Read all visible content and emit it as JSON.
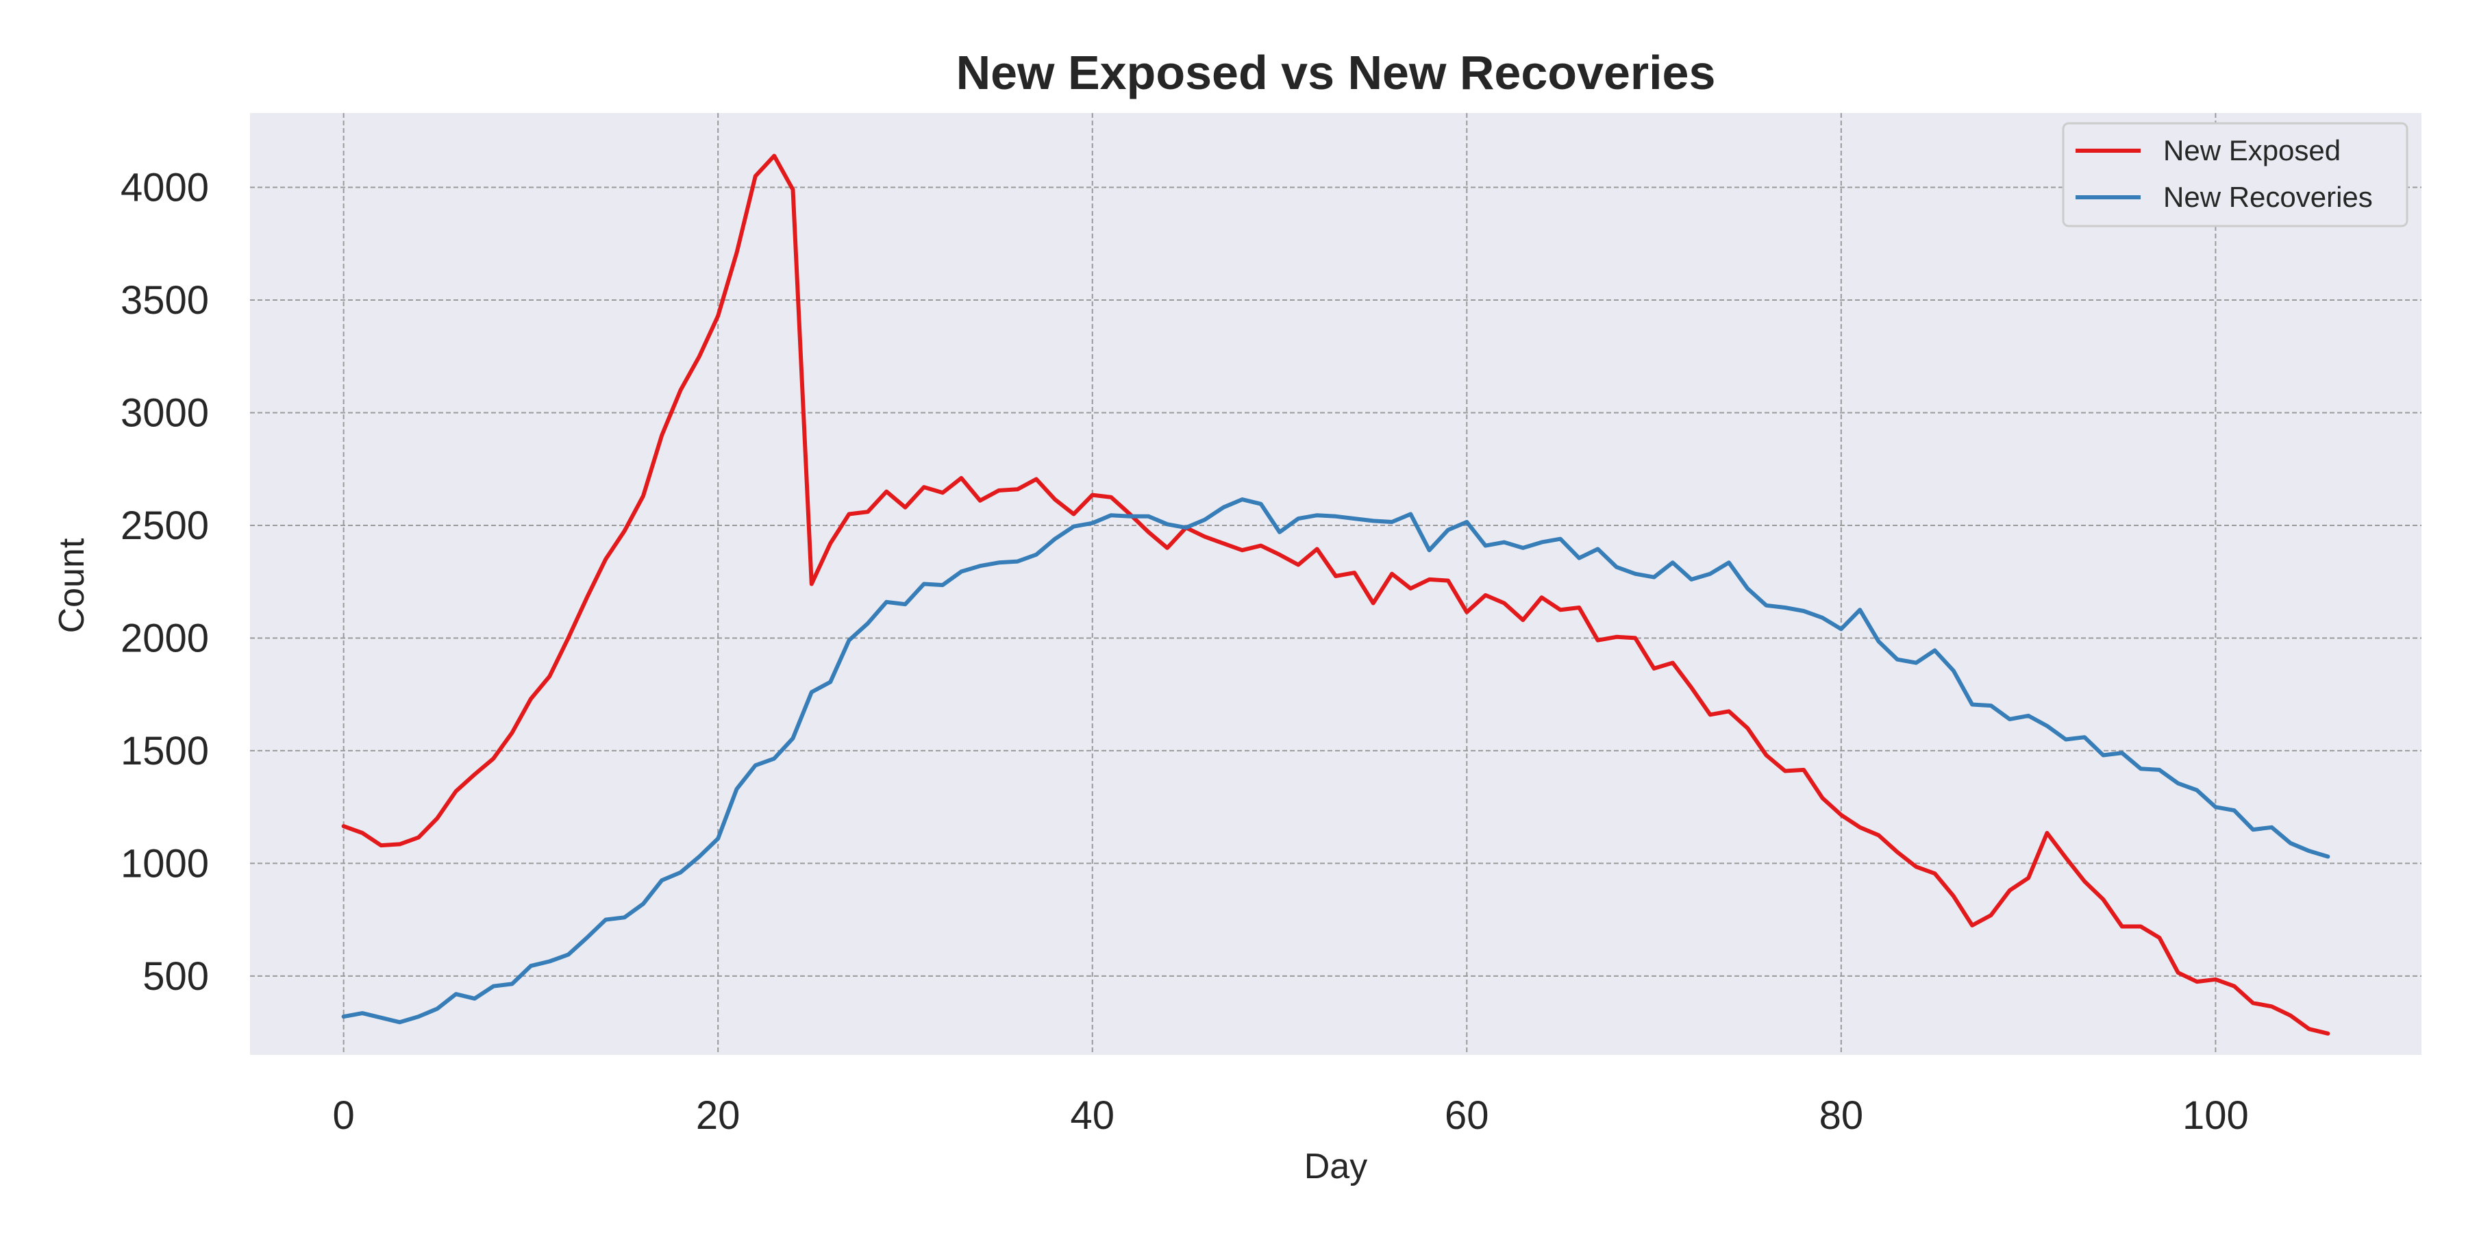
{
  "chart_data": {
    "type": "line",
    "title": "New Exposed vs New Recoveries",
    "xlabel": "Day",
    "ylabel": "Count",
    "xlim": [
      -5,
      111
    ],
    "ylim": [
      150,
      4330
    ],
    "xticks": [
      0,
      20,
      40,
      60,
      80,
      100
    ],
    "yticks": [
      500,
      1000,
      1500,
      2000,
      2500,
      3000,
      3500,
      4000
    ],
    "grid": true,
    "legend_position": "top-right",
    "background_color": "#eaeaf2",
    "grid_color": "#9a9a9a",
    "series": [
      {
        "name": "New Exposed",
        "color": "#e31a1c",
        "x": [
          0,
          1,
          2,
          3,
          4,
          5,
          6,
          7,
          8,
          9,
          10,
          11,
          12,
          13,
          14,
          15,
          16,
          17,
          18,
          19,
          20,
          21,
          22,
          23,
          24,
          25,
          26,
          27,
          28,
          29,
          30,
          31,
          32,
          33,
          34,
          35,
          36,
          37,
          38,
          39,
          40,
          41,
          42,
          43,
          44,
          45,
          46,
          47,
          48,
          49,
          50,
          51,
          52,
          53,
          54,
          55,
          56,
          57,
          58,
          59,
          60,
          61,
          62,
          63,
          64,
          65,
          66,
          67,
          68,
          69,
          70,
          71,
          72,
          73,
          74,
          75,
          76,
          77,
          78,
          79,
          80,
          81,
          82,
          83,
          84,
          85,
          86,
          87,
          88,
          89,
          90,
          91,
          92,
          93,
          94,
          95,
          96,
          97,
          98,
          99,
          100,
          101,
          102,
          103,
          104,
          105,
          106
        ],
        "values": [
          1165,
          1135,
          1080,
          1085,
          1115,
          1200,
          1320,
          1395,
          1465,
          1580,
          1730,
          1830,
          2000,
          2180,
          2350,
          2475,
          2630,
          2900,
          3100,
          3250,
          3430,
          3710,
          4050,
          4140,
          3990,
          2240,
          2420,
          2550,
          2560,
          2650,
          2580,
          2670,
          2645,
          2710,
          2610,
          2655,
          2660,
          2705,
          2615,
          2550,
          2635,
          2625,
          2550,
          2470,
          2400,
          2490,
          2450,
          2420,
          2390,
          2410,
          2370,
          2325,
          2395,
          2275,
          2290,
          2155,
          2285,
          2220,
          2260,
          2255,
          2115,
          2190,
          2155,
          2080,
          2180,
          2125,
          2135,
          1990,
          2005,
          2000,
          1865,
          1890,
          1780,
          1660,
          1675,
          1600,
          1480,
          1410,
          1415,
          1290,
          1215,
          1160,
          1125,
          1050,
          985,
          955,
          855,
          725,
          770,
          880,
          935,
          1135,
          1025,
          920,
          840,
          720,
          720,
          670,
          515,
          475,
          485,
          455,
          380,
          365,
          325,
          265,
          245
        ]
      },
      {
        "name": "New Recoveries",
        "color": "#377eb8",
        "x": [
          0,
          1,
          2,
          3,
          4,
          5,
          6,
          7,
          8,
          9,
          10,
          11,
          12,
          13,
          14,
          15,
          16,
          17,
          18,
          19,
          20,
          21,
          22,
          23,
          24,
          25,
          26,
          27,
          28,
          29,
          30,
          31,
          32,
          33,
          34,
          35,
          36,
          37,
          38,
          39,
          40,
          41,
          42,
          43,
          44,
          45,
          46,
          47,
          48,
          49,
          50,
          51,
          52,
          53,
          54,
          55,
          56,
          57,
          58,
          59,
          60,
          61,
          62,
          63,
          64,
          65,
          66,
          67,
          68,
          69,
          70,
          71,
          72,
          73,
          74,
          75,
          76,
          77,
          78,
          79,
          80,
          81,
          82,
          83,
          84,
          85,
          86,
          87,
          88,
          89,
          90,
          91,
          92,
          93,
          94,
          95,
          96,
          97,
          98,
          99,
          100,
          101,
          102,
          103,
          104,
          105,
          106
        ],
        "values": [
          320,
          335,
          315,
          295,
          320,
          355,
          420,
          400,
          455,
          465,
          545,
          565,
          595,
          670,
          750,
          760,
          820,
          925,
          960,
          1030,
          1110,
          1330,
          1435,
          1465,
          1555,
          1760,
          1805,
          1990,
          2065,
          2160,
          2150,
          2240,
          2235,
          2295,
          2320,
          2335,
          2340,
          2370,
          2440,
          2495,
          2510,
          2545,
          2540,
          2540,
          2505,
          2490,
          2525,
          2580,
          2615,
          2595,
          2470,
          2530,
          2545,
          2540,
          2530,
          2520,
          2515,
          2550,
          2390,
          2480,
          2515,
          2410,
          2425,
          2400,
          2425,
          2440,
          2355,
          2395,
          2315,
          2285,
          2270,
          2335,
          2260,
          2285,
          2335,
          2220,
          2145,
          2135,
          2120,
          2090,
          2040,
          2125,
          1985,
          1905,
          1890,
          1945,
          1855,
          1705,
          1700,
          1640,
          1655,
          1610,
          1550,
          1560,
          1480,
          1490,
          1420,
          1415,
          1355,
          1325,
          1250,
          1235,
          1150,
          1160,
          1090,
          1055,
          1030
        ]
      }
    ]
  }
}
